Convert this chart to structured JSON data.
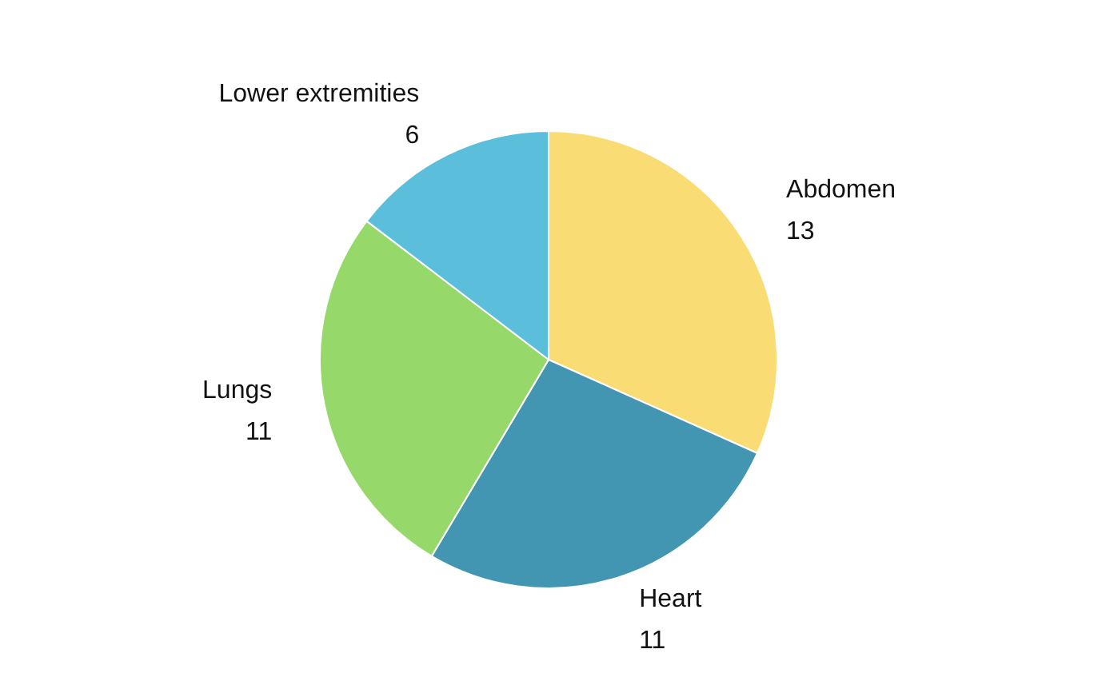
{
  "chart_data": {
    "type": "pie",
    "categories": [
      "Abdomen",
      "Heart",
      "Lungs",
      "Lower extremities"
    ],
    "values": [
      13,
      11,
      11,
      6
    ],
    "colors": [
      "#f9dc74",
      "#4396b1",
      "#97d86a",
      "#5bbfdc"
    ],
    "data_labels": true,
    "legend": false
  }
}
